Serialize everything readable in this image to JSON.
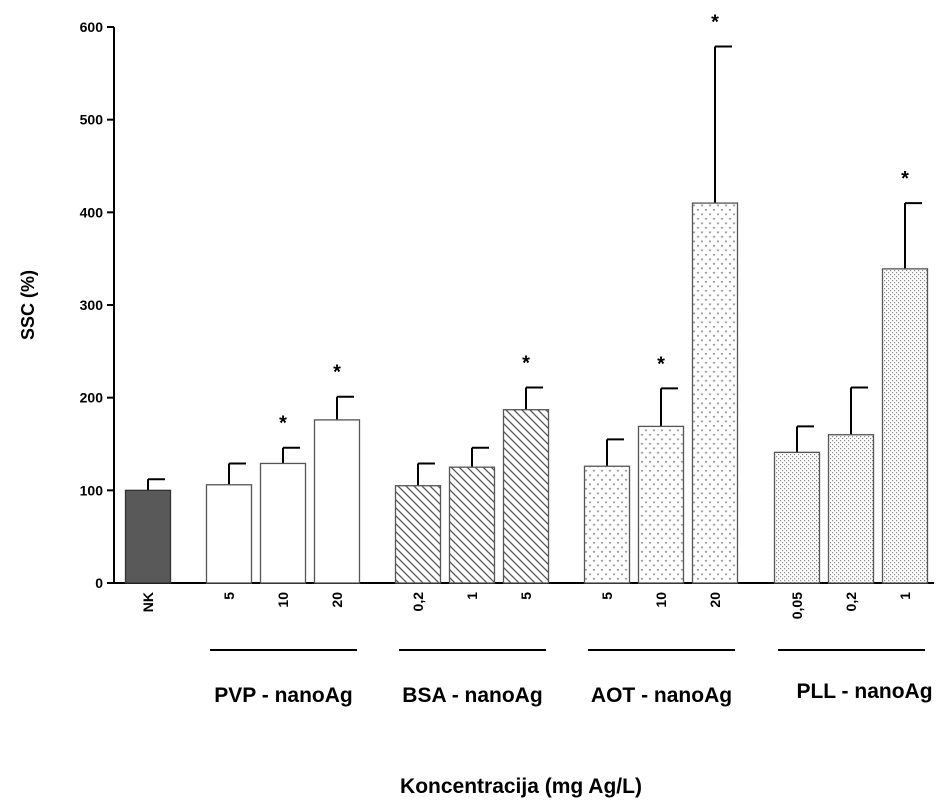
{
  "chart_data": {
    "type": "bar",
    "ylabel": "SSC (%)",
    "xlabel": "Koncentracija (mg Ag/L)",
    "ylim": [
      0,
      600
    ],
    "yticks": [
      0,
      100,
      200,
      300,
      400,
      500,
      600
    ],
    "grid": false,
    "significance_marker": "*",
    "control": {
      "label": "NK",
      "value": 100,
      "error": 12,
      "color": "#595959"
    },
    "groups": [
      {
        "name": "PVP - nanoAg",
        "pattern": "plain",
        "bars": [
          {
            "label": "5",
            "value": 106,
            "error": 23,
            "significant": false
          },
          {
            "label": "10",
            "value": 129,
            "error": 17,
            "significant": true
          },
          {
            "label": "20",
            "value": 176,
            "error": 25,
            "significant": true
          }
        ]
      },
      {
        "name": "BSA - nanoAg",
        "pattern": "diagonal-hatch",
        "bars": [
          {
            "label": "0,2",
            "value": 105,
            "error": 24,
            "significant": false
          },
          {
            "label": "1",
            "value": 125,
            "error": 21,
            "significant": false
          },
          {
            "label": "5",
            "value": 187,
            "error": 24,
            "significant": true
          }
        ]
      },
      {
        "name": "AOT - nanoAg",
        "pattern": "chevron-dots",
        "bars": [
          {
            "label": "5",
            "value": 126,
            "error": 29,
            "significant": false
          },
          {
            "label": "10",
            "value": 169,
            "error": 41,
            "significant": true
          },
          {
            "label": "20",
            "value": 410,
            "error": 169,
            "significant": true
          }
        ]
      },
      {
        "name": "PLL - nanoAg",
        "pattern": "fine-dots",
        "bars": [
          {
            "label": "0,05",
            "value": 141,
            "error": 28,
            "significant": false
          },
          {
            "label": "0,2",
            "value": 160,
            "error": 51,
            "significant": false
          },
          {
            "label": "1",
            "value": 339,
            "error": 71,
            "significant": true
          }
        ]
      }
    ]
  }
}
